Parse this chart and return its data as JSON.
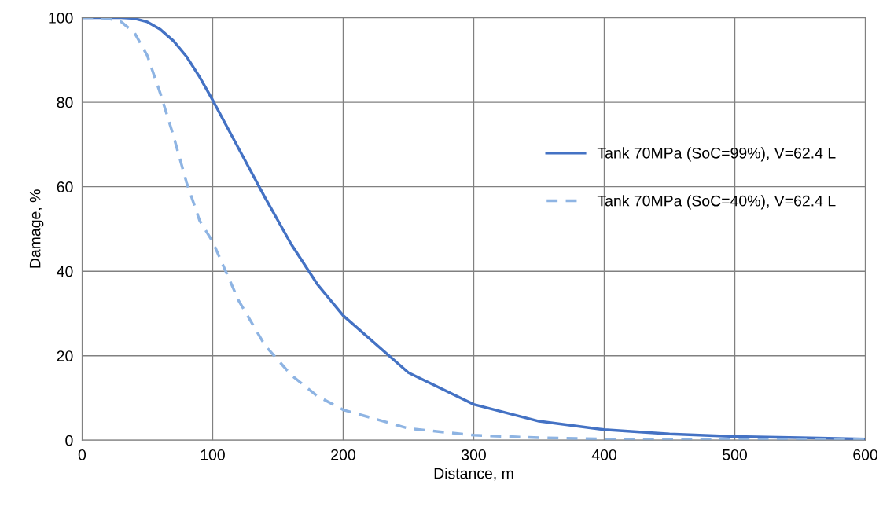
{
  "chart_data": {
    "type": "line",
    "xlabel": "Distance, m",
    "ylabel": "Damage, %",
    "x": [
      0,
      10,
      20,
      30,
      40,
      50,
      60,
      70,
      80,
      90,
      100,
      120,
      140,
      160,
      180,
      200,
      250,
      300,
      350,
      400,
      450,
      500,
      550,
      600
    ],
    "series": [
      {
        "name": "Tank 70MPa (SoC=99%), V=62.4 L",
        "color": "#4472c4",
        "line_style": "solid",
        "values": [
          100,
          100,
          100,
          100,
          99.8,
          99,
          97.2,
          94.5,
          90.8,
          86,
          80.5,
          69,
          57.5,
          46.5,
          37,
          29.5,
          16,
          8.5,
          4.5,
          2.5,
          1.5,
          0.9,
          0.6,
          0.3
        ]
      },
      {
        "name": "Tank 70MPa (SoC=40%), V=62.4 L",
        "color": "#8eb4e3",
        "line_style": "dashed",
        "values": [
          100,
          100,
          99.8,
          99,
          96.5,
          91,
          82,
          72,
          61,
          52,
          47,
          33,
          22.5,
          15.5,
          10.5,
          7.2,
          2.8,
          1.2,
          0.6,
          0.3,
          0.2,
          0.1,
          0.1,
          0.1
        ]
      }
    ],
    "xlim": [
      0,
      600
    ],
    "xticks": [
      0,
      100,
      200,
      300,
      400,
      500,
      600
    ],
    "ylim": [
      0,
      100
    ],
    "yticks": [
      0,
      20,
      40,
      60,
      80,
      100
    ],
    "grid": true,
    "legend": "right",
    "marker": "none"
  }
}
